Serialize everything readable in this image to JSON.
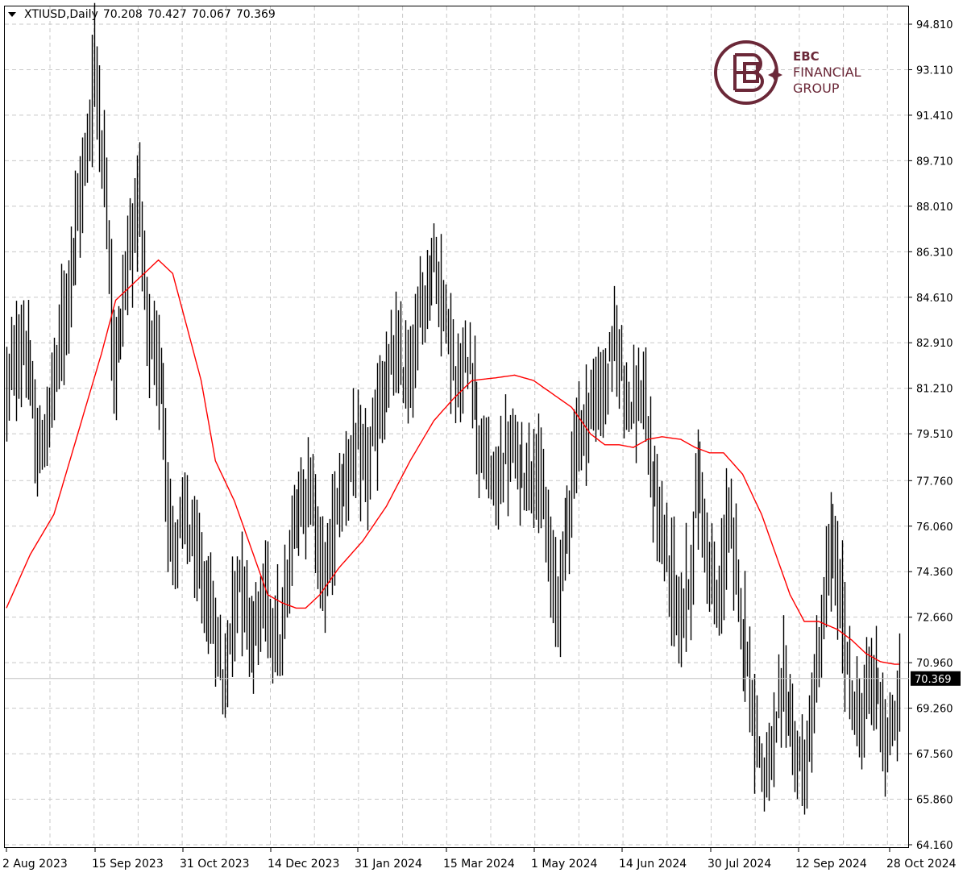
{
  "header": {
    "symbol": "XTIUSD,Daily",
    "open": "70.208",
    "high": "70.427",
    "low": "70.067",
    "close": "70.369"
  },
  "brand": {
    "line1": "EBC",
    "line2": "FINANCIAL",
    "line3": "GROUP",
    "color": "#6b2838"
  },
  "current_price_label": "70.369",
  "chart_data": {
    "type": "ohlc_bar",
    "symbol": "XTIUSD",
    "timeframe": "Daily",
    "grid": true,
    "ylim": [
      64.16,
      95.2
    ],
    "y_ticks": [
      "94.810",
      "93.110",
      "91.410",
      "89.710",
      "88.010",
      "86.310",
      "84.610",
      "82.910",
      "81.210",
      "79.510",
      "77.760",
      "76.060",
      "74.360",
      "72.660",
      "70.960",
      "69.260",
      "67.560",
      "65.860",
      "64.160"
    ],
    "x_ticks": [
      "2 Aug 2023",
      "15 Sep 2023",
      "31 Oct 2023",
      "14 Dec 2023",
      "31 Jan 2024",
      "15 Mar 2024",
      "1 May 2024",
      "14 Jun 2024",
      "30 Jul 2024",
      "12 Sep 2024",
      "28 Oct 2024"
    ],
    "last_price": 70.369,
    "bar_color": "#000000",
    "ma_color": "#ff0000",
    "price_anchors": [
      [
        0,
        81.2
      ],
      [
        8,
        83.0
      ],
      [
        14,
        78.5
      ],
      [
        18,
        80.0
      ],
      [
        24,
        83.5
      ],
      [
        32,
        88.5
      ],
      [
        36,
        91.5
      ],
      [
        38,
        93.5
      ],
      [
        44,
        86.0
      ],
      [
        46,
        81.5
      ],
      [
        50,
        85.0
      ],
      [
        56,
        88.5
      ],
      [
        60,
        83.0
      ],
      [
        66,
        81.5
      ],
      [
        70,
        75.0
      ],
      [
        76,
        76.5
      ],
      [
        82,
        74.0
      ],
      [
        88,
        72.5
      ],
      [
        92,
        70.0
      ],
      [
        98,
        74.5
      ],
      [
        104,
        72.0
      ],
      [
        110,
        73.5
      ],
      [
        116,
        71.5
      ],
      [
        122,
        76.5
      ],
      [
        128,
        77.8
      ],
      [
        134,
        74.0
      ],
      [
        140,
        77.0
      ],
      [
        146,
        78.8
      ],
      [
        152,
        78.2
      ],
      [
        158,
        80.5
      ],
      [
        164,
        82.5
      ],
      [
        170,
        81.5
      ],
      [
        176,
        84.5
      ],
      [
        180,
        86.2
      ],
      [
        186,
        84.0
      ],
      [
        190,
        81.0
      ],
      [
        196,
        82.5
      ],
      [
        200,
        79.0
      ],
      [
        206,
        77.5
      ],
      [
        212,
        79.0
      ],
      [
        218,
        78.0
      ],
      [
        224,
        78.5
      ],
      [
        228,
        75.5
      ],
      [
        232,
        73.0
      ],
      [
        236,
        76.0
      ],
      [
        240,
        79.0
      ],
      [
        246,
        80.5
      ],
      [
        252,
        81.0
      ],
      [
        256,
        83.0
      ],
      [
        260,
        82.0
      ],
      [
        264,
        80.5
      ],
      [
        268,
        81.0
      ],
      [
        272,
        78.0
      ],
      [
        276,
        76.0
      ],
      [
        280,
        74.5
      ],
      [
        284,
        72.5
      ],
      [
        288,
        74.0
      ],
      [
        292,
        78.0
      ],
      [
        296,
        75.0
      ],
      [
        300,
        72.5
      ],
      [
        304,
        76.5
      ],
      [
        308,
        74.0
      ],
      [
        312,
        71.5
      ],
      [
        316,
        68.5
      ],
      [
        320,
        66.5
      ],
      [
        324,
        68.0
      ],
      [
        328,
        70.5
      ],
      [
        332,
        68.0
      ],
      [
        336,
        66.5
      ],
      [
        340,
        69.0
      ],
      [
        344,
        72.5
      ],
      [
        348,
        75.5
      ],
      [
        352,
        73.0
      ],
      [
        356,
        70.0
      ],
      [
        360,
        68.5
      ],
      [
        364,
        70.5
      ],
      [
        368,
        70.0
      ],
      [
        372,
        67.5
      ],
      [
        376,
        69.5
      ]
    ],
    "ma_anchors": [
      [
        0,
        73.0
      ],
      [
        10,
        75.0
      ],
      [
        20,
        76.5
      ],
      [
        30,
        79.5
      ],
      [
        40,
        82.5
      ],
      [
        46,
        84.5
      ],
      [
        52,
        85.0
      ],
      [
        58,
        85.5
      ],
      [
        64,
        86.0
      ],
      [
        70,
        85.5
      ],
      [
        76,
        83.5
      ],
      [
        82,
        81.5
      ],
      [
        88,
        78.5
      ],
      [
        96,
        77.0
      ],
      [
        104,
        75.0
      ],
      [
        110,
        73.5
      ],
      [
        116,
        73.2
      ],
      [
        122,
        73.0
      ],
      [
        126,
        73.0
      ],
      [
        132,
        73.5
      ],
      [
        140,
        74.5
      ],
      [
        150,
        75.5
      ],
      [
        160,
        76.8
      ],
      [
        170,
        78.5
      ],
      [
        180,
        80.0
      ],
      [
        188,
        80.8
      ],
      [
        196,
        81.5
      ],
      [
        206,
        81.6
      ],
      [
        214,
        81.7
      ],
      [
        222,
        81.5
      ],
      [
        230,
        81.0
      ],
      [
        238,
        80.5
      ],
      [
        246,
        79.5
      ],
      [
        252,
        79.1
      ],
      [
        258,
        79.1
      ],
      [
        264,
        79.0
      ],
      [
        270,
        79.3
      ],
      [
        276,
        79.4
      ],
      [
        284,
        79.3
      ],
      [
        290,
        79.0
      ],
      [
        296,
        78.8
      ],
      [
        302,
        78.8
      ],
      [
        310,
        78.0
      ],
      [
        318,
        76.5
      ],
      [
        324,
        75.0
      ],
      [
        330,
        73.5
      ],
      [
        336,
        72.5
      ],
      [
        342,
        72.5
      ],
      [
        350,
        72.2
      ],
      [
        356,
        71.8
      ],
      [
        362,
        71.3
      ],
      [
        368,
        71.0
      ],
      [
        374,
        70.9
      ]
    ],
    "bar_count": 377
  }
}
